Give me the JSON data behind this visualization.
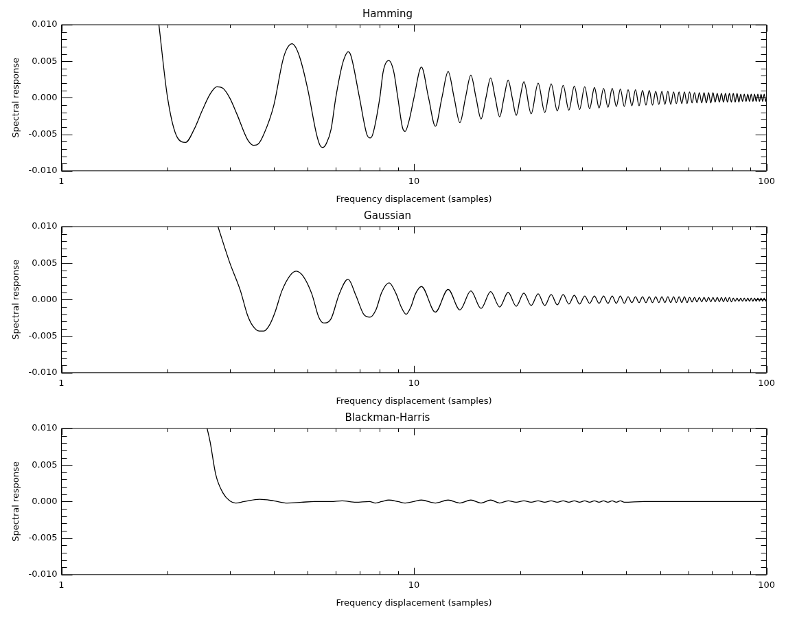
{
  "chart_data": [
    {
      "type": "line",
      "title": "Hamming",
      "xlabel": "Frequency displacement (samples)",
      "ylabel": "Spectral response",
      "log": "x",
      "color": "#000000",
      "xlim": [
        1,
        100
      ],
      "ylim": [
        -0.01,
        0.01
      ],
      "xticks": [
        1,
        {
          "value": 2,
          "label": null
        },
        {
          "value": 3,
          "label": null
        },
        {
          "value": 4,
          "label": null
        },
        {
          "value": 5,
          "label": null
        },
        {
          "value": 6,
          "label": null
        },
        {
          "value": 7,
          "label": null
        },
        {
          "value": 8,
          "label": null
        },
        {
          "value": 9,
          "label": null
        },
        10,
        {
          "value": 20,
          "label": null
        },
        {
          "value": 30,
          "label": null
        },
        {
          "value": 40,
          "label": null
        },
        {
          "value": 50,
          "label": null
        },
        {
          "value": 60,
          "label": null
        },
        {
          "value": 70,
          "label": null
        },
        {
          "value": 80,
          "label": null
        },
        {
          "value": 90,
          "label": null
        },
        100
      ],
      "yticks": [
        {
          "value": -0.01,
          "label": "-0.010"
        },
        {
          "value": -0.009,
          "label": null
        },
        {
          "value": -0.008,
          "label": null
        },
        {
          "value": -0.007,
          "label": null
        },
        {
          "value": -0.006,
          "label": null
        },
        {
          "value": -0.005,
          "label": "-0.005"
        },
        {
          "value": -0.004,
          "label": null
        },
        {
          "value": -0.003,
          "label": null
        },
        {
          "value": -0.002,
          "label": null
        },
        {
          "value": -0.001,
          "label": null
        },
        {
          "value": 0,
          "label": "0.000"
        },
        {
          "value": 0.001,
          "label": null
        },
        {
          "value": 0.002,
          "label": null
        },
        {
          "value": 0.003,
          "label": null
        },
        {
          "value": 0.004,
          "label": null
        },
        {
          "value": 0.005,
          "label": "0.005"
        },
        {
          "value": 0.006,
          "label": null
        },
        {
          "value": 0.007,
          "label": null
        },
        {
          "value": 0.008,
          "label": null
        },
        {
          "value": 0.009,
          "label": null
        },
        {
          "value": 0.01,
          "label": "0.010"
        }
      ],
      "x": [
        1.89,
        2.0,
        2.13,
        2.25,
        2.38,
        2.51,
        2.64,
        2.76,
        2.87,
        3.0,
        3.15,
        3.37,
        3.51,
        3.62,
        3.75,
        4.0,
        4.25,
        4.37,
        4.51,
        4.63,
        4.78,
        5.0,
        5.28,
        5.4,
        5.51,
        5.65,
        5.82,
        6.0,
        6.25,
        6.39,
        6.51,
        6.63,
        7.0,
        7.35,
        7.51,
        7.64,
        8.0,
        8.18,
        8.48,
        8.76,
        9.0,
        9.28,
        9.44,
        9.7,
        10.0,
        10.5,
        11,
        11.5,
        12,
        12.5,
        13,
        13.5,
        14,
        14.5,
        15,
        15.5,
        16,
        16.5,
        17,
        17.5,
        18,
        18.5,
        19,
        19.5,
        20,
        20.5,
        21.5,
        22.5,
        23.5,
        24.5,
        25.5,
        26.5,
        27.5,
        28.5,
        29.5,
        30.5,
        31.5,
        32.5,
        33.5,
        34.5,
        35.5,
        36.5,
        37.5,
        38.5,
        39.5,
        40.5,
        41.5,
        42.5,
        43.5,
        44.5,
        45.5,
        46.5,
        47.5,
        48.5,
        49.5,
        50.5,
        51.5,
        52.5,
        53.5,
        54.5,
        55.5,
        56.5,
        57.5,
        58.5,
        59.5,
        60.5,
        61.5,
        62.5,
        63.5,
        64.5,
        65.5,
        66.5,
        67.5,
        68.5,
        69.5,
        70.5,
        71.5,
        72.5,
        73.5,
        74.5,
        75.5,
        76.5,
        77.5,
        78.5,
        79.5,
        80.5,
        81.5,
        82.5,
        83.5,
        84.5,
        85.5,
        86.5,
        87.5,
        88.5,
        89.5,
        90.5,
        91.5,
        92.5,
        93.5,
        94.5,
        95.5,
        96.5,
        97.5,
        98.5,
        99.5,
        100
      ],
      "values": [
        0.01,
        0,
        -0.0054,
        -0.0061,
        -0.0043,
        -0.0017,
        0.0005,
        0.0015,
        0.0013,
        0,
        -0.0023,
        -0.0057,
        -0.0065,
        -0.0063,
        -0.005,
        -0.0011,
        0.0052,
        0.0068,
        0.0074,
        0.0068,
        0.005,
        0.0011,
        -0.0048,
        -0.0064,
        -0.0068,
        -0.0062,
        -0.0043,
        0,
        0.0044,
        0.0058,
        0.0063,
        0.0057,
        0.0001,
        -0.005,
        -0.0055,
        -0.005,
        0,
        0.0036,
        0.0051,
        0.0036,
        0,
        -0.0041,
        -0.0046,
        -0.003,
        0,
        0.0042,
        0,
        -0.0039,
        0,
        0.0036,
        0,
        -0.0034,
        0,
        0.0031,
        0,
        -0.0029,
        0,
        0.0027,
        0,
        -0.0026,
        0,
        0.0024,
        0,
        -0.0024,
        0,
        0.0022,
        -0.0022,
        0.002,
        -0.002,
        0.0019,
        -0.0018,
        0.0017,
        -0.0017,
        0.0016,
        -0.0016,
        0.0015,
        -0.0015,
        0.0014,
        -0.0014,
        0.0013,
        -0.0013,
        0.0013,
        -0.0012,
        0.0012,
        -0.0012,
        0.0011,
        -0.0011,
        0.0011,
        -0.0011,
        0.001,
        -0.001,
        0.001,
        -0.001,
        0.0009,
        -0.0009,
        0.0009,
        -0.0009,
        0.0009,
        -0.0009,
        0.0008,
        -0.0008,
        0.0008,
        -0.0008,
        0.0008,
        -0.0008,
        0.0008,
        -0.0007,
        0.0007,
        -0.0007,
        0.0007,
        -0.0007,
        0.0007,
        -0.0007,
        0.0007,
        -0.0007,
        0.0007,
        -0.0006,
        0.0006,
        -0.0006,
        0.0006,
        -0.0006,
        0.0006,
        -0.0006,
        0.0006,
        -0.0006,
        0.0006,
        -0.0006,
        0.0006,
        -0.0006,
        0.0005,
        -0.0005,
        0.0005,
        -0.0005,
        0.0005,
        -0.0005,
        0.0005,
        -0.0005,
        0.0005,
        -0.0005,
        0.0005,
        -0.0005,
        0.0005,
        -0.0005,
        0.0005,
        -0.0005,
        0
      ]
    },
    {
      "type": "line",
      "title": "Gaussian",
      "xlabel": "Frequency displacement (samples)",
      "ylabel": "Spectral response",
      "log": "x",
      "color": "#000000",
      "xlim": [
        1,
        100
      ],
      "ylim": [
        -0.01,
        0.01
      ],
      "xticks": [
        1,
        {
          "value": 2,
          "label": null
        },
        {
          "value": 3,
          "label": null
        },
        {
          "value": 4,
          "label": null
        },
        {
          "value": 5,
          "label": null
        },
        {
          "value": 6,
          "label": null
        },
        {
          "value": 7,
          "label": null
        },
        {
          "value": 8,
          "label": null
        },
        {
          "value": 9,
          "label": null
        },
        10,
        {
          "value": 20,
          "label": null
        },
        {
          "value": 30,
          "label": null
        },
        {
          "value": 40,
          "label": null
        },
        {
          "value": 50,
          "label": null
        },
        {
          "value": 60,
          "label": null
        },
        {
          "value": 70,
          "label": null
        },
        {
          "value": 80,
          "label": null
        },
        {
          "value": 90,
          "label": null
        },
        100
      ],
      "yticks": [
        {
          "value": -0.01,
          "label": "-0.010"
        },
        {
          "value": -0.009,
          "label": null
        },
        {
          "value": -0.008,
          "label": null
        },
        {
          "value": -0.007,
          "label": null
        },
        {
          "value": -0.006,
          "label": null
        },
        {
          "value": -0.005,
          "label": "-0.005"
        },
        {
          "value": -0.004,
          "label": null
        },
        {
          "value": -0.003,
          "label": null
        },
        {
          "value": -0.002,
          "label": null
        },
        {
          "value": -0.001,
          "label": null
        },
        {
          "value": 0,
          "label": "0.000"
        },
        {
          "value": 0.001,
          "label": null
        },
        {
          "value": 0.002,
          "label": null
        },
        {
          "value": 0.003,
          "label": null
        },
        {
          "value": 0.004,
          "label": null
        },
        {
          "value": 0.005,
          "label": "0.005"
        },
        {
          "value": 0.006,
          "label": null
        },
        {
          "value": 0.007,
          "label": null
        },
        {
          "value": 0.008,
          "label": null
        },
        {
          "value": 0.009,
          "label": null
        },
        {
          "value": 0.01,
          "label": "0.010"
        }
      ],
      "x": [
        2.78,
        3.0,
        3.22,
        3.37,
        3.49,
        3.64,
        3.75,
        3.89,
        4.03,
        4.22,
        4.45,
        4.63,
        4.85,
        5.13,
        5.37,
        5.55,
        5.82,
        6.14,
        6.5,
        6.84,
        7.2,
        7.5,
        7.8,
        8.1,
        8.5,
        8.9,
        9.2,
        9.5,
        9.8,
        10.1,
        10.5,
        11.5,
        12.5,
        13.5,
        14.5,
        15.5,
        16.5,
        17.5,
        18.5,
        19.5,
        20.5,
        21.5,
        22.5,
        23.5,
        24.5,
        25.5,
        26.5,
        27.5,
        28.5,
        29.5,
        30.5,
        31.5,
        32.5,
        33.5,
        34.5,
        35.5,
        36.5,
        37.5,
        38.5,
        39.5,
        40.5,
        41.5,
        42.5,
        43.5,
        44.5,
        45.5,
        46.5,
        47.5,
        48.5,
        49.5,
        50.5,
        51.5,
        52.5,
        53.5,
        54.5,
        55.5,
        56.5,
        57.5,
        58.5,
        59.5,
        60.5,
        61.5,
        62.5,
        63.5,
        64.5,
        65.5,
        66.5,
        67.5,
        68.5,
        69.5,
        70.5,
        71.5,
        72.5,
        73.5,
        74.5,
        75.5,
        76.5,
        77.5,
        78.5,
        79.5,
        80.5,
        81.5,
        82.5,
        83.5,
        84.5,
        85.5,
        86.5,
        87.5,
        88.5,
        89.5,
        90.5,
        91.5,
        92.5,
        93.5,
        94.5,
        95.5,
        96.5,
        97.5,
        98.5,
        99.5,
        100
      ],
      "values": [
        0.01,
        0.0051,
        0.0012,
        -0.0021,
        -0.0036,
        -0.0043,
        -0.0043,
        -0.0035,
        -0.0018,
        0.0012,
        0.0033,
        0.0039,
        0.0032,
        0.0008,
        -0.0024,
        -0.0032,
        -0.0026,
        0.0008,
        0.0028,
        0.0006,
        -0.002,
        -0.0024,
        -0.0014,
        0.001,
        0.0023,
        0.0008,
        -0.001,
        -0.002,
        -0.001,
        0.0008,
        0.0018,
        -0.0017,
        0.0014,
        -0.0014,
        0.0012,
        -0.0012,
        0.0011,
        -0.001,
        0.001,
        -0.0009,
        0.0009,
        -0.0008,
        0.0008,
        -0.0008,
        0.0007,
        -0.0007,
        0.0007,
        -0.0006,
        0.0006,
        -0.0006,
        0.0005,
        -0.0005,
        0.0005,
        -0.0005,
        0.0005,
        -0.0005,
        0.0005,
        -0.0005,
        0.0005,
        -0.0005,
        0.0004,
        -0.0004,
        0.0004,
        -0.0004,
        0.0004,
        -0.0004,
        0.0004,
        -0.0004,
        0.0004,
        -0.0004,
        0.0004,
        -0.0004,
        0.0004,
        -0.0004,
        0.0004,
        -0.0004,
        0.0004,
        -0.0004,
        0.0004,
        -0.0004,
        0.0003,
        -0.0003,
        0.0003,
        -0.0003,
        0.0003,
        -0.0003,
        0.0003,
        -0.0003,
        0.0003,
        -0.0003,
        0.0003,
        -0.0003,
        0.0003,
        -0.0003,
        0.0003,
        -0.0003,
        0.0003,
        -0.0003,
        0.0003,
        -0.0003,
        0.0002,
        -0.0002,
        0.0002,
        -0.0002,
        0.0002,
        -0.0002,
        0.0002,
        -0.0002,
        0.0002,
        -0.0002,
        0.0002,
        -0.0002,
        0.0002,
        -0.0002,
        0.0002,
        -0.0002,
        0.0002,
        -0.0002,
        0.0002,
        -0.0002,
        0
      ]
    },
    {
      "type": "line",
      "title": "Blackman-Harris",
      "xlabel": "Frequency displacement (samples)",
      "ylabel": "Spectral response",
      "log": "x",
      "color": "#000000",
      "xlim": [
        1,
        100
      ],
      "ylim": [
        -0.01,
        0.01
      ],
      "xticks": [
        1,
        {
          "value": 2,
          "label": null
        },
        {
          "value": 3,
          "label": null
        },
        {
          "value": 4,
          "label": null
        },
        {
          "value": 5,
          "label": null
        },
        {
          "value": 6,
          "label": null
        },
        {
          "value": 7,
          "label": null
        },
        {
          "value": 8,
          "label": null
        },
        {
          "value": 9,
          "label": null
        },
        10,
        {
          "value": 20,
          "label": null
        },
        {
          "value": 30,
          "label": null
        },
        {
          "value": 40,
          "label": null
        },
        {
          "value": 50,
          "label": null
        },
        {
          "value": 60,
          "label": null
        },
        {
          "value": 70,
          "label": null
        },
        {
          "value": 80,
          "label": null
        },
        {
          "value": 90,
          "label": null
        },
        100
      ],
      "yticks": [
        {
          "value": -0.01,
          "label": "-0.010"
        },
        {
          "value": -0.009,
          "label": null
        },
        {
          "value": -0.008,
          "label": null
        },
        {
          "value": -0.007,
          "label": null
        },
        {
          "value": -0.006,
          "label": null
        },
        {
          "value": -0.005,
          "label": "-0.005"
        },
        {
          "value": -0.004,
          "label": null
        },
        {
          "value": -0.003,
          "label": null
        },
        {
          "value": -0.002,
          "label": null
        },
        {
          "value": -0.001,
          "label": null
        },
        {
          "value": 0,
          "label": "0.000"
        },
        {
          "value": 0.001,
          "label": null
        },
        {
          "value": 0.002,
          "label": null
        },
        {
          "value": 0.003,
          "label": null
        },
        {
          "value": 0.004,
          "label": null
        },
        {
          "value": 0.005,
          "label": "0.005"
        },
        {
          "value": 0.006,
          "label": null
        },
        {
          "value": 0.007,
          "label": null
        },
        {
          "value": 0.008,
          "label": null
        },
        {
          "value": 0.009,
          "label": null
        },
        {
          "value": 0.01,
          "label": "0.010"
        }
      ],
      "x": [
        2.59,
        2.64,
        2.74,
        2.87,
        3.0,
        3.12,
        3.3,
        3.65,
        4.0,
        4.37,
        4.8,
        5.23,
        5.82,
        6.25,
        6.84,
        7.48,
        7.75,
        8.1,
        8.48,
        9.0,
        9.44,
        10.0,
        10.5,
        11.5,
        12.5,
        13.5,
        14.5,
        15.5,
        16.5,
        17.5,
        18.5,
        19.5,
        20.5,
        21.5,
        22.5,
        23.5,
        24.5,
        25.5,
        26.5,
        27.5,
        28.5,
        29.5,
        30.5,
        31.5,
        32.5,
        33.5,
        34.5,
        35.5,
        36.5,
        37.5,
        38.5,
        39.5,
        45,
        60,
        80,
        100
      ],
      "values": [
        0.01,
        0.0082,
        0.0037,
        0.0012,
        0.0001,
        -0.0002,
        0,
        0.0003,
        0.0001,
        -0.0002,
        -0.0001,
        0,
        0,
        0.0001,
        -0.0001,
        0,
        -0.0002,
        0,
        0.0002,
        0,
        -0.0002,
        0,
        0.0002,
        -0.0002,
        0.0002,
        -0.0002,
        0.0002,
        -0.0002,
        0.0002,
        -0.0002,
        0.0001,
        -0.0001,
        0.0001,
        -0.0001,
        0.0001,
        -0.0001,
        0.0001,
        -0.0001,
        0.0001,
        -0.0001,
        0.0001,
        -0.0001,
        0.0001,
        -0.0001,
        0.0001,
        -0.0001,
        0.0001,
        -0.0001,
        0.0001,
        -0.0001,
        0.0001,
        -0.0001,
        0,
        0,
        0,
        0
      ]
    }
  ]
}
